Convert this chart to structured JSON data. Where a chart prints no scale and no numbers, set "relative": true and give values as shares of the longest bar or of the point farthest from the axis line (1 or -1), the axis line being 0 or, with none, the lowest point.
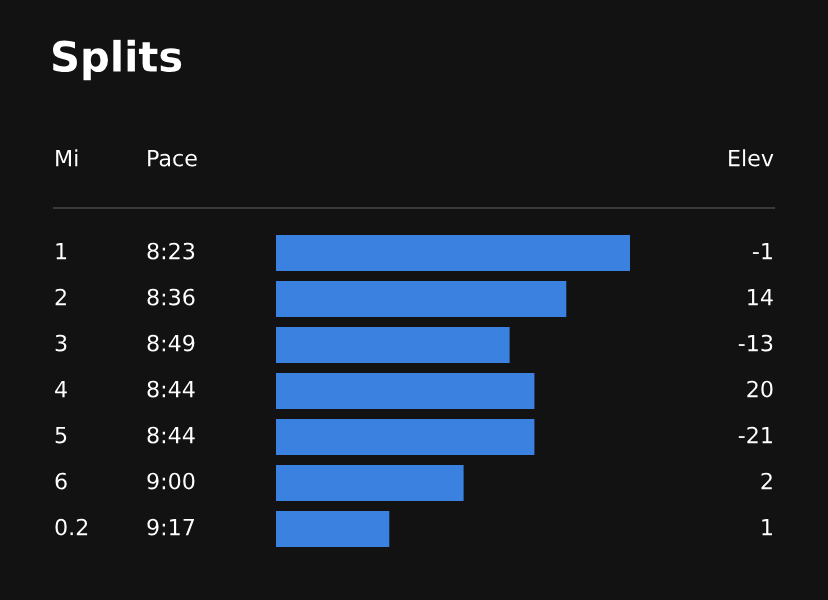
{
  "chart_data": {
    "type": "bar",
    "orientation": "horizontal",
    "relative": true,
    "title": "Splits",
    "categories": [
      "1",
      "2",
      "3",
      "4",
      "5",
      "6",
      "0.2"
    ],
    "values": [
      1,
      0.82,
      0.66,
      0.73,
      0.73,
      0.53,
      0.32
    ],
    "color": "#3b82e0",
    "annotations": [
      "Mi",
      "Pace",
      "Elev",
      "8:23",
      "8:36",
      "8:49",
      "8:44",
      "8:44",
      "9:00",
      "9:17",
      "-1",
      "14",
      "-13",
      "20",
      "-21",
      "2",
      "1"
    ]
  }
}
